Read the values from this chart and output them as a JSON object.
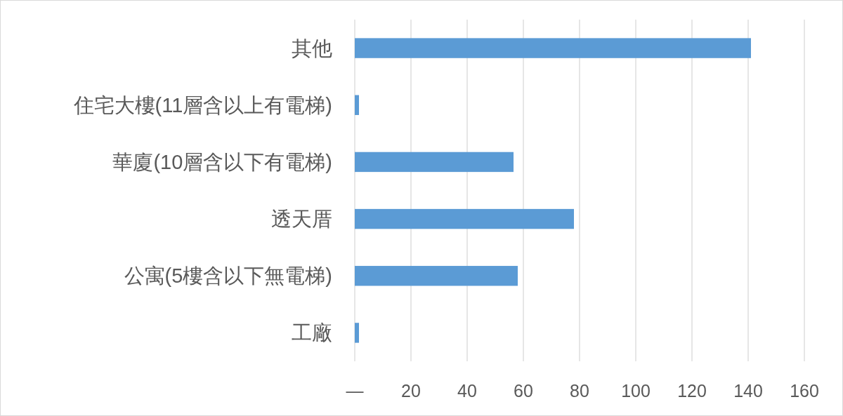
{
  "chart_data": {
    "type": "bar",
    "orientation": "horizontal",
    "categories": [
      "其他",
      "住宅大樓(11層含以上有電梯)",
      "華廈(10層含以下有電梯)",
      "透天厝",
      "公寓(5樓含以下無電梯)",
      "工廠"
    ],
    "values": [
      141,
      1.5,
      56.5,
      78,
      58,
      1.5
    ],
    "color": "#5b9bd5",
    "xlim": [
      0,
      160
    ],
    "xticks": [
      {
        "value": 0,
        "label": "—"
      },
      20,
      40,
      60,
      80,
      100,
      120,
      140,
      160
    ],
    "grid": "x"
  }
}
